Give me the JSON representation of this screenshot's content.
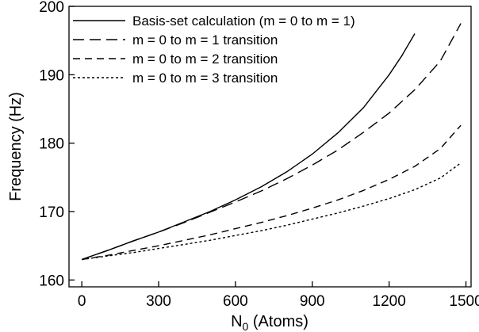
{
  "chart_data": {
    "type": "line",
    "xlabel": {
      "main": "N",
      "sub": "0",
      "rest": " (Atoms)"
    },
    "ylabel": "Frequency (Hz)",
    "xlim": [
      -50,
      1520
    ],
    "ylim": [
      159,
      200
    ],
    "xticks": [
      0,
      300,
      600,
      900,
      1200,
      1500
    ],
    "yticks": [
      160,
      170,
      180,
      190,
      200
    ],
    "grid": false,
    "legend_position": "top-left",
    "series": [
      {
        "name": "Basis-set calculation (m = 0 to m = 1)",
        "dash": "solid",
        "x": [
          0,
          100,
          200,
          300,
          400,
          500,
          600,
          700,
          800,
          900,
          1000,
          1100,
          1200,
          1250,
          1300
        ],
        "y": [
          163.0,
          164.3,
          165.7,
          167.0,
          168.5,
          170.0,
          171.7,
          173.6,
          175.8,
          178.4,
          181.5,
          185.2,
          190.0,
          192.8,
          196.0
        ]
      },
      {
        "name": "m = 0 to m = 1 transition",
        "dash": "long",
        "x": [
          0,
          100,
          200,
          300,
          400,
          500,
          600,
          700,
          800,
          900,
          1000,
          1100,
          1200,
          1300,
          1400,
          1480
        ],
        "y": [
          163.0,
          164.3,
          165.7,
          167.0,
          168.4,
          169.9,
          171.4,
          173.0,
          174.8,
          176.8,
          179.0,
          181.6,
          184.4,
          187.8,
          192.0,
          197.5
        ]
      },
      {
        "name": "m = 0 to m = 2 transition",
        "dash": "medium",
        "x": [
          0,
          100,
          200,
          300,
          400,
          500,
          600,
          700,
          800,
          900,
          1000,
          1100,
          1200,
          1300,
          1400,
          1480
        ],
        "y": [
          163.0,
          163.6,
          164.3,
          165.0,
          165.8,
          166.6,
          167.5,
          168.4,
          169.4,
          170.5,
          171.7,
          173.1,
          174.7,
          176.6,
          179.2,
          182.6
        ]
      },
      {
        "name": "m = 0 to m = 3 transition",
        "dash": "short",
        "x": [
          0,
          100,
          200,
          300,
          400,
          500,
          600,
          700,
          800,
          900,
          1000,
          1100,
          1200,
          1300,
          1400,
          1480
        ],
        "y": [
          163.0,
          163.5,
          164.0,
          164.6,
          165.2,
          165.8,
          166.5,
          167.2,
          168.0,
          168.9,
          169.8,
          170.8,
          171.9,
          173.2,
          174.9,
          177.1
        ]
      }
    ]
  }
}
